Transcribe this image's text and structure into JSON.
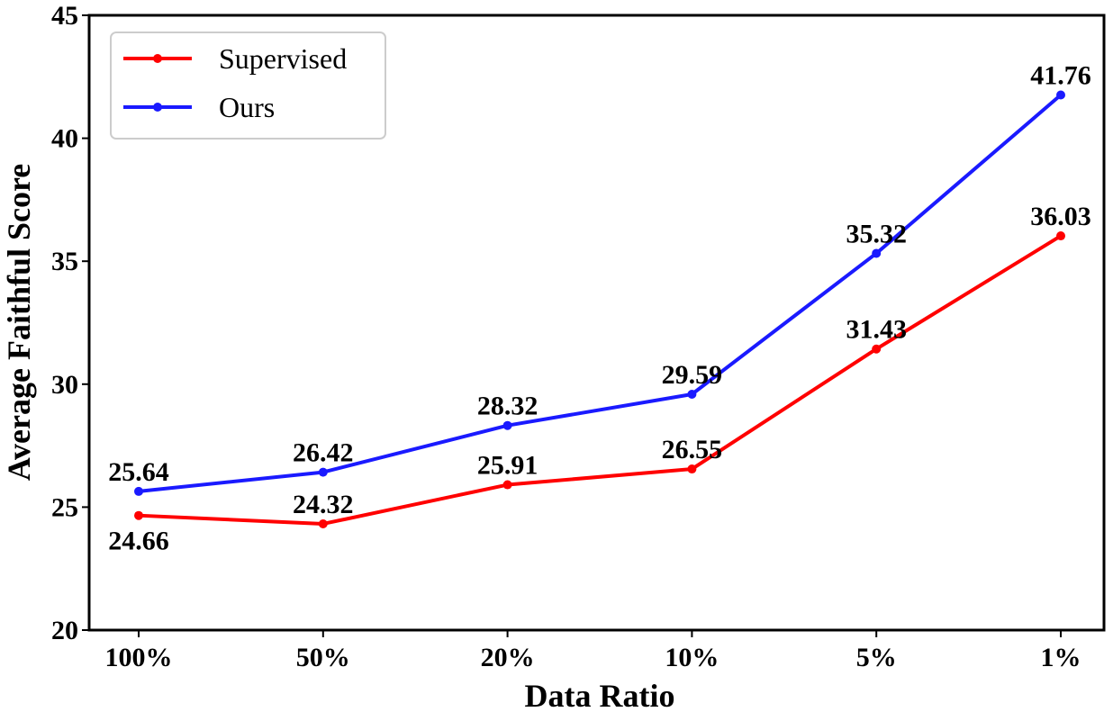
{
  "chart_data": {
    "type": "line",
    "categories": [
      "100%",
      "50%",
      "20%",
      "10%",
      "5%",
      "1%"
    ],
    "series": [
      {
        "name": "Supervised",
        "color": "#ff0000",
        "values": [
          24.66,
          24.32,
          25.91,
          26.55,
          31.43,
          36.03
        ],
        "labels": [
          "24.66",
          "24.32",
          "25.91",
          "26.55",
          "31.43",
          "36.03"
        ]
      },
      {
        "name": "Ours",
        "color": "#1a1aff",
        "values": [
          25.64,
          26.42,
          28.32,
          29.59,
          35.32,
          41.76
        ],
        "labels": [
          "25.64",
          "26.42",
          "28.32",
          "29.59",
          "35.32",
          "41.76"
        ]
      }
    ],
    "xlabel": "Data Ratio",
    "ylabel": "Average Faithful Score",
    "ylim": [
      20,
      45
    ],
    "yticks": [
      "20",
      "25",
      "30",
      "35",
      "40",
      "45"
    ],
    "grid": false,
    "legend_position": "top-left"
  }
}
